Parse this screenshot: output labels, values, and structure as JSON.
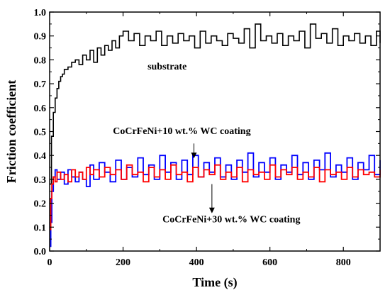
{
  "chart_data": {
    "type": "line",
    "xlabel": "Time (s)",
    "ylabel": "Friction coefficient",
    "xlim": [
      0,
      900
    ],
    "ylim": [
      0.0,
      1.0
    ],
    "x_ticks": [
      0,
      200,
      400,
      600,
      800
    ],
    "x_tick_labels": [
      "0",
      "200",
      "400",
      "600",
      "800"
    ],
    "y_ticks": [
      0.0,
      0.1,
      0.2,
      0.3,
      0.4,
      0.5,
      0.6,
      0.7,
      0.8,
      0.9,
      1.0
    ],
    "y_tick_labels": [
      "0.0",
      "0.1",
      "0.2",
      "0.3",
      "0.4",
      "0.5",
      "0.6",
      "0.7",
      "0.8",
      "0.9",
      "1.0"
    ],
    "grid": false,
    "series": [
      {
        "name": "substrate",
        "color": "#000000",
        "x": [
          0,
          5,
          10,
          15,
          20,
          25,
          30,
          35,
          40,
          50,
          60,
          70,
          80,
          90,
          100,
          110,
          120,
          130,
          140,
          150,
          160,
          170,
          180,
          190,
          200,
          215,
          230,
          245,
          260,
          275,
          290,
          305,
          320,
          335,
          350,
          365,
          380,
          395,
          410,
          425,
          440,
          455,
          470,
          485,
          500,
          515,
          530,
          545,
          560,
          575,
          590,
          605,
          620,
          635,
          650,
          665,
          680,
          695,
          710,
          725,
          740,
          755,
          770,
          785,
          800,
          815,
          830,
          845,
          860,
          875,
          890,
          900
        ],
        "y": [
          0.28,
          0.48,
          0.58,
          0.64,
          0.68,
          0.71,
          0.73,
          0.74,
          0.76,
          0.77,
          0.79,
          0.8,
          0.78,
          0.82,
          0.8,
          0.84,
          0.79,
          0.85,
          0.82,
          0.86,
          0.84,
          0.88,
          0.85,
          0.9,
          0.92,
          0.88,
          0.91,
          0.86,
          0.9,
          0.88,
          0.92,
          0.86,
          0.9,
          0.87,
          0.91,
          0.88,
          0.9,
          0.85,
          0.92,
          0.87,
          0.9,
          0.88,
          0.86,
          0.91,
          0.89,
          0.87,
          0.93,
          0.85,
          0.95,
          0.88,
          0.9,
          0.87,
          0.91,
          0.86,
          0.9,
          0.88,
          0.92,
          0.85,
          0.95,
          0.89,
          0.91,
          0.87,
          0.93,
          0.86,
          0.9,
          0.88,
          0.91,
          0.87,
          0.9,
          0.86,
          0.92,
          0.87
        ]
      },
      {
        "name": "CoCrFeNi+10 wt.% WC coating",
        "color": "#0000ff",
        "x": [
          0,
          3,
          6,
          10,
          15,
          20,
          30,
          40,
          50,
          60,
          70,
          80,
          90,
          100,
          110,
          120,
          135,
          150,
          165,
          180,
          195,
          210,
          225,
          240,
          255,
          270,
          285,
          300,
          315,
          330,
          345,
          360,
          375,
          390,
          405,
          420,
          435,
          450,
          465,
          480,
          495,
          510,
          525,
          540,
          555,
          570,
          585,
          600,
          615,
          630,
          645,
          660,
          675,
          690,
          705,
          720,
          735,
          750,
          765,
          780,
          795,
          810,
          825,
          840,
          855,
          870,
          885,
          900
        ],
        "y": [
          0.02,
          0.12,
          0.25,
          0.31,
          0.34,
          0.3,
          0.33,
          0.28,
          0.34,
          0.31,
          0.29,
          0.33,
          0.3,
          0.27,
          0.36,
          0.3,
          0.37,
          0.33,
          0.29,
          0.38,
          0.3,
          0.35,
          0.31,
          0.39,
          0.32,
          0.36,
          0.3,
          0.4,
          0.33,
          0.37,
          0.3,
          0.38,
          0.32,
          0.4,
          0.31,
          0.37,
          0.33,
          0.39,
          0.31,
          0.36,
          0.3,
          0.38,
          0.33,
          0.41,
          0.31,
          0.37,
          0.33,
          0.39,
          0.3,
          0.36,
          0.33,
          0.4,
          0.32,
          0.37,
          0.3,
          0.38,
          0.34,
          0.41,
          0.31,
          0.36,
          0.33,
          0.39,
          0.3,
          0.37,
          0.34,
          0.4,
          0.32,
          0.38
        ]
      },
      {
        "name": "CoCrFeNi+30 wt.% WC coating",
        "color": "#ff0000",
        "x": [
          0,
          3,
          6,
          10,
          15,
          20,
          30,
          40,
          50,
          60,
          70,
          80,
          90,
          100,
          110,
          120,
          135,
          150,
          165,
          180,
          195,
          210,
          225,
          240,
          255,
          270,
          285,
          300,
          315,
          330,
          345,
          360,
          375,
          390,
          405,
          420,
          435,
          450,
          465,
          480,
          495,
          510,
          525,
          540,
          555,
          570,
          585,
          600,
          615,
          630,
          645,
          660,
          675,
          690,
          705,
          720,
          735,
          750,
          765,
          780,
          795,
          810,
          825,
          840,
          855,
          870,
          885,
          900
        ],
        "y": [
          0.09,
          0.22,
          0.28,
          0.31,
          0.29,
          0.33,
          0.3,
          0.32,
          0.29,
          0.34,
          0.31,
          0.33,
          0.3,
          0.35,
          0.32,
          0.34,
          0.31,
          0.35,
          0.32,
          0.34,
          0.3,
          0.36,
          0.32,
          0.33,
          0.29,
          0.35,
          0.31,
          0.34,
          0.3,
          0.36,
          0.32,
          0.33,
          0.29,
          0.35,
          0.31,
          0.34,
          0.32,
          0.36,
          0.3,
          0.33,
          0.31,
          0.35,
          0.29,
          0.34,
          0.32,
          0.33,
          0.3,
          0.36,
          0.31,
          0.34,
          0.32,
          0.35,
          0.3,
          0.33,
          0.31,
          0.35,
          0.29,
          0.34,
          0.32,
          0.33,
          0.3,
          0.35,
          0.31,
          0.34,
          0.32,
          0.33,
          0.31,
          0.34
        ]
      }
    ],
    "annotations": [
      {
        "text": "substrate",
        "x": 320,
        "y": 0.76
      },
      {
        "text": "CoCrFeNi+10 wt.% WC coating",
        "x": 360,
        "y": 0.49,
        "arrow_from": 0.45,
        "arrow_to": 0.4
      },
      {
        "text": "CoCrFeNi+30 wt.% WC coating",
        "x": 495,
        "y": 0.12,
        "arrow_from": 0.28,
        "arrow_to": 0.17
      }
    ]
  }
}
